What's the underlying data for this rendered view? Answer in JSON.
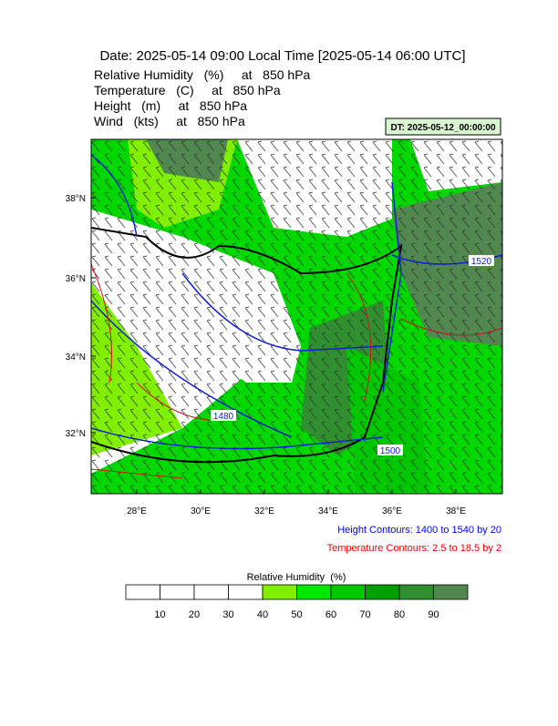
{
  "header": {
    "title": "Date: 2025-05-14  09:00 Local Time [2025-05-14  06:00 UTC]",
    "lines": [
      "Relative Humidity   (%)     at   850 hPa",
      "Temperature   (C)     at   850 hPa",
      "Height   (m)     at   850 hPa",
      "Wind   (kts)     at   850 hPa"
    ],
    "dt": "DT: 2025-05-12_00:00:00"
  },
  "map": {
    "lat_labels": [
      "38°N",
      "36°N",
      "34°N",
      "32°N"
    ],
    "lon_labels": [
      "28°E",
      "30°E",
      "32°E",
      "34°E",
      "36°E",
      "38°E"
    ],
    "contour_labels": [
      "1480",
      "1500",
      "1520"
    ]
  },
  "legend": {
    "height": "Height Contours: 1400 to 1540 by 20",
    "temperature": "Temperature Contours: 2.5 to 18.5 by 2"
  },
  "colorbar": {
    "title": "Relative Humidity  (%)",
    "labels": [
      "10",
      "20",
      "30",
      "40",
      "50",
      "60",
      "70",
      "80",
      "90"
    ],
    "colors": [
      "#ffffff",
      "#ffffff",
      "#ffffff",
      "#ffffff",
      "#80f000",
      "#00e800",
      "#00c800",
      "#00a000",
      "#309030",
      "#508850"
    ]
  }
}
